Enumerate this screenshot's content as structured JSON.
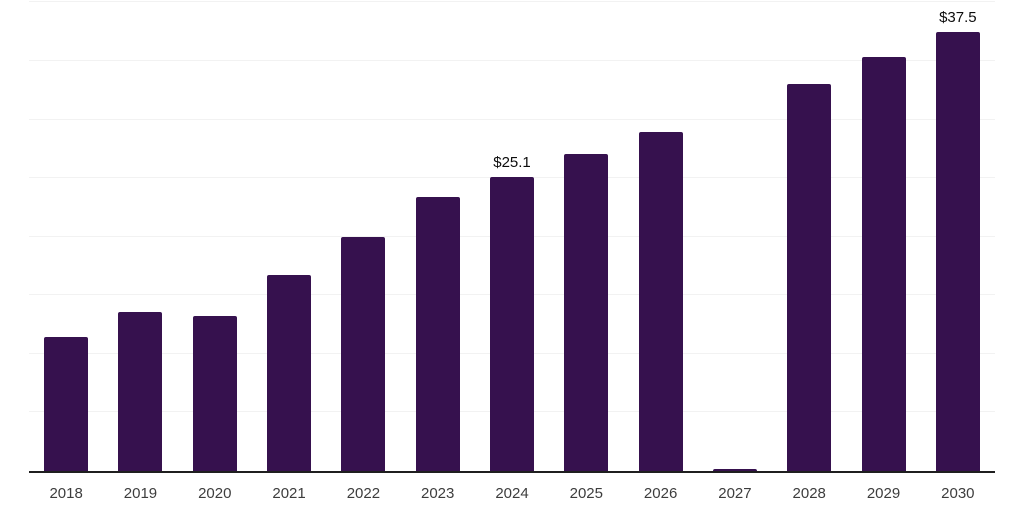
{
  "chart_data": {
    "type": "bar",
    "title": "",
    "xlabel": "",
    "ylabel": "",
    "categories": [
      "2018",
      "2019",
      "2020",
      "2021",
      "2022",
      "2023",
      "2024",
      "2025",
      "2026",
      "2027",
      "2028",
      "2029",
      "2030"
    ],
    "values": [
      11.4,
      13.6,
      13.2,
      16.7,
      20.0,
      23.4,
      25.1,
      27.1,
      28.9,
      0.2,
      33.0,
      35.3,
      37.5
    ],
    "data_labels": [
      "",
      "",
      "",
      "",
      "",
      "",
      "$25.1",
      "",
      "",
      "",
      "",
      "",
      "$37.5"
    ],
    "ylim": [
      0,
      40.2
    ],
    "grid": true,
    "grid_step": 5,
    "y_tick_labels_shown": false,
    "legend": false,
    "colors": {
      "bar": "#36114E",
      "gridline": "#f2f2f2",
      "axis_line": "#1f1f1f",
      "x_tick_label": "#3d3d3d",
      "data_label": "#0d0d0d",
      "background": "#ffffff"
    }
  }
}
